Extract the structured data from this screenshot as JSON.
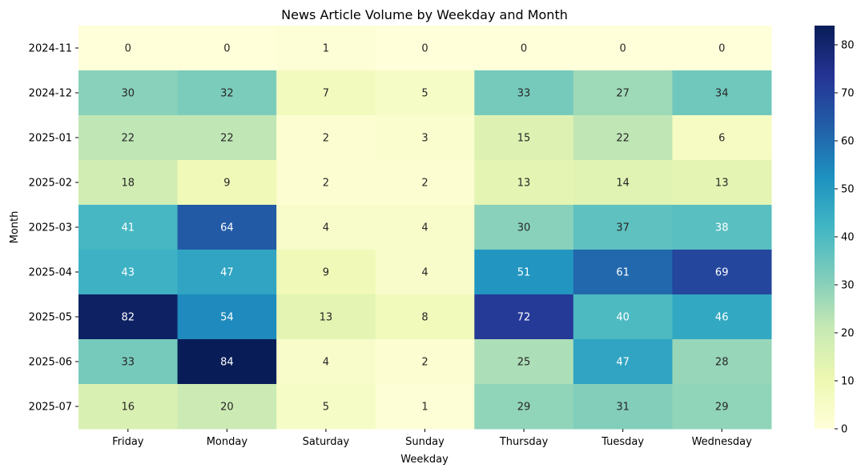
{
  "chart_data": {
    "type": "heatmap",
    "title": "News Article Volume by Weekday and Month",
    "xlabel": "Weekday",
    "ylabel": "Month",
    "x": [
      "Friday",
      "Monday",
      "Saturday",
      "Sunday",
      "Thursday",
      "Tuesday",
      "Wednesday"
    ],
    "y": [
      "2024-11",
      "2024-12",
      "2025-01",
      "2025-02",
      "2025-03",
      "2025-04",
      "2025-05",
      "2025-06",
      "2025-07"
    ],
    "values": [
      [
        0,
        0,
        1,
        0,
        0,
        0,
        0
      ],
      [
        30,
        32,
        7,
        5,
        33,
        27,
        34
      ],
      [
        22,
        22,
        2,
        3,
        15,
        22,
        6
      ],
      [
        18,
        9,
        2,
        2,
        13,
        14,
        13
      ],
      [
        41,
        64,
        4,
        4,
        30,
        37,
        38
      ],
      [
        43,
        47,
        9,
        4,
        51,
        61,
        69
      ],
      [
        82,
        54,
        13,
        8,
        72,
        40,
        46
      ],
      [
        33,
        84,
        4,
        2,
        25,
        47,
        28
      ],
      [
        16,
        20,
        5,
        1,
        29,
        31,
        29
      ]
    ],
    "colormap": "YlGnBu",
    "vmin": 0,
    "vmax": 84,
    "colorbar_ticks": [
      0,
      10,
      20,
      30,
      40,
      50,
      60,
      70,
      80
    ],
    "annotations": true
  }
}
